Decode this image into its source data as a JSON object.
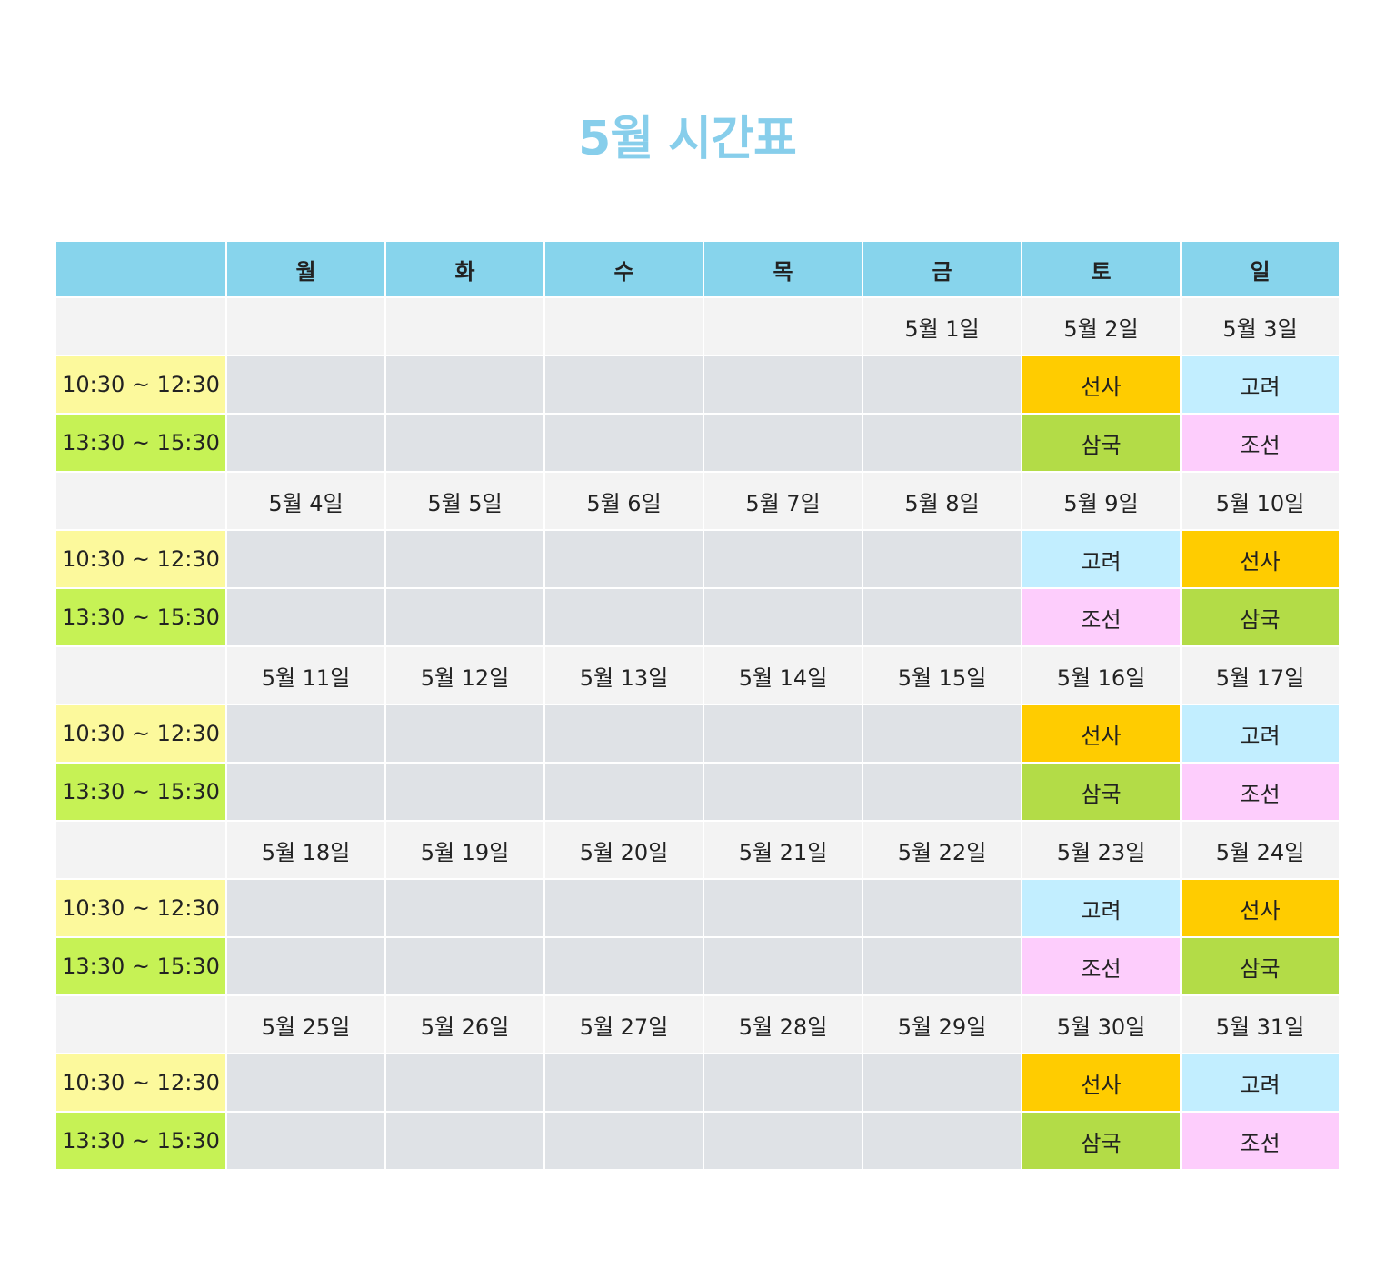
{
  "title": "5월 시간표",
  "header": {
    "days": [
      "월",
      "화",
      "수",
      "목",
      "금",
      "토",
      "일"
    ]
  },
  "colors": {
    "title": "#87ceeb",
    "header_bg": "#87d4ec",
    "date_row_bg": "#f3f3f3",
    "empty_slot_bg": "#dfe2e6",
    "slot1_bg": "#fcf99c",
    "slot2_bg": "#c6f255",
    "saturday_text": "#1a6fcc",
    "sunday_text": "#cc2b2b",
    "subject_선사": "#ffcc00",
    "subject_고려": "#c2eeff",
    "subject_삼국": "#b3dc47",
    "subject_조선": "#fdcdfc"
  },
  "time_slots": [
    "10:30 ~ 12:30",
    "13:30 ~ 15:30"
  ],
  "weeks": [
    {
      "dates": [
        "",
        "",
        "",
        "",
        "5월 1일",
        "5월 2일",
        "5월 3일"
      ],
      "slot1": [
        "",
        "",
        "",
        "",
        "",
        "선사",
        "고려"
      ],
      "slot2": [
        "",
        "",
        "",
        "",
        "",
        "삼국",
        "조선"
      ]
    },
    {
      "dates": [
        "5월 4일",
        "5월 5일",
        "5월 6일",
        "5월 7일",
        "5월 8일",
        "5월 9일",
        "5월 10일"
      ],
      "slot1": [
        "",
        "",
        "",
        "",
        "",
        "고려",
        "선사"
      ],
      "slot2": [
        "",
        "",
        "",
        "",
        "",
        "조선",
        "삼국"
      ]
    },
    {
      "dates": [
        "5월 11일",
        "5월 12일",
        "5월 13일",
        "5월 14일",
        "5월 15일",
        "5월 16일",
        "5월 17일"
      ],
      "slot1": [
        "",
        "",
        "",
        "",
        "",
        "선사",
        "고려"
      ],
      "slot2": [
        "",
        "",
        "",
        "",
        "",
        "삼국",
        "조선"
      ]
    },
    {
      "dates": [
        "5월 18일",
        "5월 19일",
        "5월 20일",
        "5월 21일",
        "5월 22일",
        "5월 23일",
        "5월 24일"
      ],
      "slot1": [
        "",
        "",
        "",
        "",
        "",
        "고려",
        "선사"
      ],
      "slot2": [
        "",
        "",
        "",
        "",
        "",
        "조선",
        "삼국"
      ]
    },
    {
      "dates": [
        "5월 25일",
        "5월 26일",
        "5월 27일",
        "5월 28일",
        "5월 29일",
        "5월 30일",
        "5월 31일"
      ],
      "slot1": [
        "",
        "",
        "",
        "",
        "",
        "선사",
        "고려"
      ],
      "slot2": [
        "",
        "",
        "",
        "",
        "",
        "삼국",
        "조선"
      ]
    }
  ],
  "holidays": [
    "5월 5일"
  ]
}
